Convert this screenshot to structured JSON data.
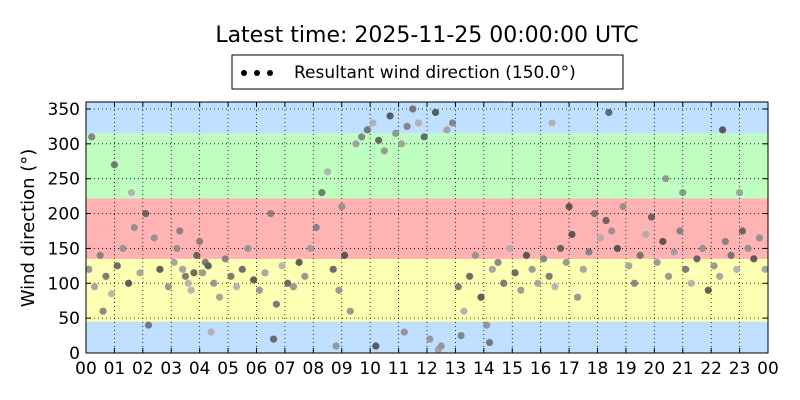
{
  "chart_data": {
    "type": "scatter",
    "title": "Latest time: 2025-11-25 00:00:00 UTC",
    "ylabel": "Wind direction (°)",
    "xlabel": "",
    "legend": {
      "label": "Resultant wind direction (150.0°)",
      "placement": "top-center"
    },
    "xlim": [
      0,
      24
    ],
    "ylim": [
      0,
      360
    ],
    "grid": true,
    "x_tick_labels": [
      "00",
      "01",
      "02",
      "03",
      "04",
      "05",
      "06",
      "07",
      "08",
      "09",
      "10",
      "11",
      "12",
      "13",
      "14",
      "15",
      "16",
      "17",
      "18",
      "19",
      "20",
      "21",
      "22",
      "23",
      "00"
    ],
    "y_ticks": [
      0,
      50,
      100,
      150,
      200,
      250,
      300,
      350
    ],
    "bands": [
      {
        "from": 0,
        "to": 45,
        "color": "#bfe0ff"
      },
      {
        "from": 45,
        "to": 135,
        "color": "#ffffb3"
      },
      {
        "from": 135,
        "to": 222,
        "color": "#ffb3b3"
      },
      {
        "from": 222,
        "to": 315,
        "color": "#bfffbf"
      },
      {
        "from": 315,
        "to": 360,
        "color": "#bfe0ff"
      }
    ],
    "series": [
      {
        "name": "Resultant wind direction (150.0°)",
        "points": [
          [
            0.1,
            120
          ],
          [
            0.3,
            95
          ],
          [
            0.5,
            140
          ],
          [
            0.7,
            110
          ],
          [
            0.9,
            85
          ],
          [
            1.1,
            125
          ],
          [
            1.3,
            150
          ],
          [
            1.5,
            100
          ],
          [
            1.7,
            180
          ],
          [
            1.9,
            115
          ],
          [
            0.2,
            310
          ],
          [
            1.0,
            270
          ],
          [
            1.6,
            230
          ],
          [
            2.1,
            200
          ],
          [
            2.4,
            165
          ],
          [
            2.6,
            120
          ],
          [
            2.9,
            95
          ],
          [
            3.1,
            130
          ],
          [
            3.3,
            175
          ],
          [
            3.5,
            110
          ],
          [
            3.7,
            90
          ],
          [
            3.9,
            140
          ],
          [
            4.1,
            115
          ],
          [
            4.3,
            125
          ],
          [
            4.5,
            100
          ],
          [
            4.7,
            80
          ],
          [
            4.9,
            135
          ],
          [
            5.1,
            110
          ],
          [
            5.3,
            95
          ],
          [
            5.5,
            120
          ],
          [
            5.7,
            150
          ],
          [
            5.9,
            105
          ],
          [
            6.1,
            90
          ],
          [
            6.3,
            115
          ],
          [
            6.5,
            200
          ],
          [
            6.7,
            70
          ],
          [
            6.9,
            125
          ],
          [
            7.1,
            100
          ],
          [
            7.3,
            95
          ],
          [
            7.5,
            130
          ],
          [
            7.7,
            110
          ],
          [
            7.9,
            150
          ],
          [
            8.1,
            180
          ],
          [
            8.3,
            230
          ],
          [
            8.5,
            260
          ],
          [
            8.7,
            120
          ],
          [
            8.9,
            90
          ],
          [
            9.1,
            140
          ],
          [
            9.3,
            60
          ],
          [
            9.5,
            300
          ],
          [
            9.7,
            310
          ],
          [
            9.9,
            320
          ],
          [
            10.1,
            330
          ],
          [
            10.3,
            305
          ],
          [
            10.5,
            290
          ],
          [
            10.7,
            340
          ],
          [
            10.9,
            315
          ],
          [
            11.1,
            300
          ],
          [
            11.3,
            325
          ],
          [
            11.5,
            350
          ],
          [
            11.7,
            330
          ],
          [
            11.9,
            310
          ],
          [
            12.1,
            20
          ],
          [
            12.3,
            345
          ],
          [
            12.5,
            10
          ],
          [
            12.7,
            320
          ],
          [
            12.9,
            330
          ],
          [
            13.1,
            95
          ],
          [
            13.3,
            60
          ],
          [
            13.5,
            110
          ],
          [
            13.7,
            140
          ],
          [
            13.9,
            80
          ],
          [
            14.1,
            40
          ],
          [
            14.3,
            120
          ],
          [
            14.5,
            130
          ],
          [
            14.7,
            100
          ],
          [
            14.9,
            150
          ],
          [
            15.1,
            115
          ],
          [
            15.3,
            90
          ],
          [
            15.5,
            140
          ],
          [
            15.7,
            120
          ],
          [
            15.9,
            100
          ],
          [
            16.1,
            135
          ],
          [
            16.3,
            110
          ],
          [
            16.5,
            95
          ],
          [
            16.7,
            150
          ],
          [
            16.9,
            130
          ],
          [
            17.1,
            170
          ],
          [
            17.3,
            80
          ],
          [
            17.5,
            120
          ],
          [
            17.7,
            145
          ],
          [
            17.9,
            200
          ],
          [
            18.1,
            165
          ],
          [
            18.3,
            190
          ],
          [
            18.5,
            175
          ],
          [
            18.7,
            150
          ],
          [
            18.9,
            210
          ],
          [
            19.1,
            125
          ],
          [
            19.3,
            100
          ],
          [
            19.5,
            140
          ],
          [
            19.7,
            170
          ],
          [
            19.9,
            195
          ],
          [
            20.1,
            130
          ],
          [
            20.3,
            160
          ],
          [
            20.5,
            110
          ],
          [
            20.7,
            145
          ],
          [
            20.9,
            175
          ],
          [
            21.1,
            120
          ],
          [
            21.3,
            100
          ],
          [
            21.5,
            135
          ],
          [
            21.7,
            150
          ],
          [
            21.9,
            90
          ],
          [
            22.1,
            125
          ],
          [
            22.3,
            110
          ],
          [
            22.5,
            160
          ],
          [
            22.7,
            140
          ],
          [
            22.9,
            120
          ],
          [
            23.1,
            175
          ],
          [
            23.3,
            150
          ],
          [
            23.5,
            135
          ],
          [
            23.7,
            165
          ],
          [
            23.9,
            120
          ],
          [
            0.6,
            60
          ],
          [
            2.2,
            40
          ],
          [
            4.4,
            30
          ],
          [
            6.6,
            20
          ],
          [
            8.8,
            10
          ],
          [
            10.2,
            10
          ],
          [
            11.2,
            30
          ],
          [
            12.4,
            5
          ],
          [
            13.2,
            25
          ],
          [
            14.2,
            15
          ],
          [
            16.4,
            330
          ],
          [
            18.4,
            345
          ],
          [
            20.4,
            250
          ],
          [
            22.4,
            320
          ],
          [
            3.2,
            150
          ],
          [
            3.4,
            120
          ],
          [
            4.0,
            160
          ],
          [
            4.2,
            130
          ],
          [
            3.6,
            100
          ],
          [
            3.8,
            115
          ],
          [
            9.0,
            210
          ],
          [
            17.0,
            210
          ],
          [
            21.0,
            230
          ],
          [
            23.0,
            230
          ]
        ]
      }
    ]
  }
}
